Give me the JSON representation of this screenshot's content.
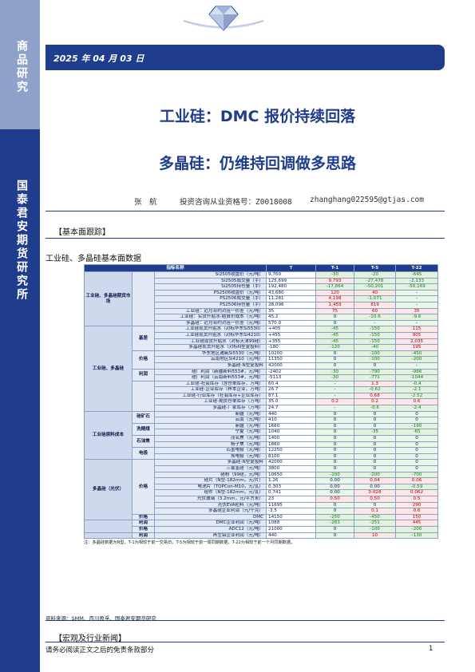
{
  "sidebar": {
    "top_text": "商品研究",
    "bottom_text": "国泰君安期货研究所"
  },
  "header": {
    "date": "2025 年 04 月 03 日"
  },
  "titles": {
    "main": "工业硅：DMC 报价持续回落",
    "sub": "多晶硅：仍维持回调做多思路"
  },
  "author": {
    "name": "张　航",
    "qualification": "投资咨询从业资格号：Z0018008",
    "email": "zhanghang022595@gtjas.com"
  },
  "sections": {
    "basic": "【基本面跟踪】",
    "macro": "【宏观及行业新闻】"
  },
  "table": {
    "caption": "工业硅、多晶硅基本面数据",
    "headers": [
      "指标名称",
      "T",
      "T-1",
      "T-5",
      "T-22"
    ],
    "rows": [
      {
        "grp": "工业硅、多晶硅期货市场",
        "sub": "",
        "name": "Si2505收盘价（元/吨）",
        "t": "9,760",
        "t1": "-30",
        "t5": "-20",
        "t22": "-645"
      },
      {
        "name": "Si2505成交量（手）",
        "t": "125,699",
        "t1": "9,793",
        "t5": "-27,478",
        "t22": "-2,133"
      },
      {
        "name": "Si2505持仓量（手）",
        "t": "192,480",
        "t1": "-17,864",
        "t5": "-50,201",
        "t22": "-50,169"
      },
      {
        "name": "PS2506收盘价（元/吨）",
        "t": "43,680",
        "t1": "120",
        "t5": "40",
        "t22": "-"
      },
      {
        "name": "PS2506成交量（手）",
        "t": "11,281",
        "t1": "4,198",
        "t5": "-1,071",
        "t22": "-"
      },
      {
        "name": "PS2506持仓量（手）",
        "t": "28,096",
        "t1": "1,459",
        "t5": "819",
        "t22": "-"
      },
      {
        "name": "工业硅：近月合约对连一价差（元/吨）",
        "t": "35",
        "t1": "75",
        "t5": "60",
        "t22": "35"
      },
      {
        "name": "工业硅：实货升贴水-结算价成本（元/吨）",
        "t": "45.2",
        "t1": "0",
        "t5": "-10.6",
        "t22": "-9.6"
      },
      {
        "name": "多晶硅：近月合约对连一价差（元/吨）",
        "t": "570.0",
        "t1": "0",
        "t5": "-",
        "t22": "-"
      },
      {
        "grp": "工业硅、多晶硅",
        "sub": "基差",
        "name": "工业硅现货升贴水（对标华东Si5530）",
        "t": "+405",
        "t1": "-45",
        "t5": "-150",
        "t22": "115"
      },
      {
        "name": "工业硅现货升贴水（对标华东Si4210）",
        "t": "+455",
        "t1": "-45",
        "t5": "-150",
        "t22": "905"
      },
      {
        "name": "工业硅现货升贴水（对标天津99硅）",
        "t": "+355",
        "t1": "-45",
        "t5": "-150",
        "t22": "2,035"
      },
      {
        "name": "多晶硅现货升贴水（对标N型复投料）",
        "t": "-180",
        "t1": "-120",
        "t5": "-40",
        "t22": "195"
      },
      {
        "sub": "价格",
        "name": "华东地区通氧Si5530（元/吨）",
        "t": "10200",
        "t1": "0",
        "t5": "-100",
        "t22": "-450"
      },
      {
        "name": "云南地区Si4210（元/吨）",
        "t": "11350",
        "t1": "0",
        "t5": "-100",
        "t22": "-200"
      },
      {
        "name": "多晶硅-N型复投料",
        "t": "42000",
        "t1": "0",
        "t5": "0",
        "t22": "-"
      },
      {
        "sub": "利润",
        "name": "硅厂利润（新疆新料553#，元/吨）",
        "t": "-2402",
        "t1": "-30",
        "t5": "-790",
        "t22": "-966"
      },
      {
        "name": "硅厂利润（云南新料553#，元/吨）",
        "t": "-5113",
        "t1": "-30",
        "t5": "-771",
        "t22": "-1044"
      },
      {
        "name": "工业硅-社会库存（含仓单库存，万吨）",
        "t": "60.4",
        "t1": "-",
        "t5": "1.3",
        "t22": "-0.4"
      },
      {
        "sub": "库存",
        "name": "工业硅-企业库存（样本企业，万吨）",
        "t": "26.7",
        "t1": "-",
        "t5": "-0.62",
        "t22": "-2.1"
      },
      {
        "name": "工业硅-行业库存（社会库存+企业库存）",
        "t": "87.1",
        "t1": "-",
        "t5": "0.68",
        "t22": "-2.52"
      },
      {
        "name": "工业硅-期货仓单库存（万吨）",
        "t": "35.0",
        "t1": "0.2",
        "t5": "0.2",
        "t22": "0.6"
      },
      {
        "name": "多晶硅-厂家库存（万吨）",
        "t": "24.7",
        "t1": "-",
        "t5": "-0.6",
        "t22": "-2.4"
      },
      {
        "grp": "工业硅原料成本",
        "sub": "硅矿石",
        "name": "新疆（元/吨）",
        "t": "440",
        "t1": "0",
        "t5": "0",
        "t22": "0"
      },
      {
        "name": "云南（元/吨）",
        "t": "410",
        "t1": "0",
        "t5": "0",
        "t22": "0"
      },
      {
        "sub": "洗精煤",
        "name": "新疆（元/吨）",
        "t": "1660",
        "t1": "0",
        "t5": "0",
        "t22": "-190"
      },
      {
        "name": "宁夏（元/吨）",
        "t": "1040",
        "t1": "0",
        "t5": "-35",
        "t22": "-65"
      },
      {
        "sub": "石油焦",
        "name": "茂名焦（元/吨）",
        "t": "1400",
        "t1": "0",
        "t5": "0",
        "t22": "0"
      },
      {
        "name": "杨子焦（元/吨）",
        "t": "1860",
        "t1": "0",
        "t5": "0",
        "t22": "0"
      },
      {
        "sub": "电极",
        "name": "石墨电极（元/吨）",
        "t": "12250",
        "t1": "0",
        "t5": "0",
        "t22": "0"
      },
      {
        "name": "炭电极（元/吨）",
        "t": "8100",
        "t1": "0",
        "t5": "0",
        "t22": "0"
      },
      {
        "grp": "多晶硅（光伏）",
        "sub": "价格",
        "name": "多晶硅-N型复投料",
        "t": "42000",
        "t1": "0",
        "t5": "0",
        "t22": "0"
      },
      {
        "name": "三氯氢硅（元/吨）",
        "t": "3800",
        "t1": "0",
        "t5": "0",
        "t22": "0"
      },
      {
        "name": "硅粉（99硅，元/吨）",
        "t": "10650",
        "t1": "-200",
        "t5": "-200",
        "t22": "-700"
      },
      {
        "name": "硅片（N型-182mm，元/片）",
        "t": "1.26",
        "t1": "0.00",
        "t5": "0.04",
        "t22": "0.06"
      },
      {
        "name": "电池片（TOPCon-M10，元/瓦）",
        "t": "0.303",
        "t1": "0.00",
        "t5": "0.00",
        "t22": "-0.59"
      },
      {
        "name": "组件（N型-182mm，元/瓦）",
        "t": "0.741",
        "t1": "0.00",
        "t5": "0.028",
        "t22": "0.062"
      },
      {
        "name": "光伏玻璃（3.2mm，元/平方米）",
        "t": "23",
        "t1": "0.50",
        "t5": "0.50",
        "t22": "0.5"
      },
      {
        "name": "光伏EVA粒料（元/吨）",
        "t": "11695",
        "t1": "0",
        "t5": "0",
        "t22": "290"
      },
      {
        "sub": "利润",
        "name": "多晶硅企业利润（元/千克）",
        "t": "-3.5",
        "t1": "0",
        "t5": "0.1",
        "t22": "0.6"
      },
      {
        "grp": "有机硅",
        "sub": "价格",
        "name": "DMC",
        "t": "14150",
        "t1": "-250",
        "t5": "-450",
        "t22": "150"
      },
      {
        "sub": "利润",
        "name": "DMC企业利润（元/吨）",
        "t": "1088",
        "t1": "-263",
        "t5": "-251",
        "t22": "445"
      },
      {
        "grp": "铝合金",
        "sub": "价格",
        "name": "ADC12（元/吨）",
        "t": "21000",
        "t1": "0",
        "t5": "-100",
        "t22": "-200"
      },
      {
        "sub": "利润",
        "name": "再生铝企业利润（元/吨）",
        "t": "440",
        "t1": "0",
        "t5": "10",
        "t22": "-130"
      }
    ],
    "note": "注：多晶硅数据为N型，T-1为相较于前一交易日，T-5为相较于前一周同期数据，T-22为相较于前一个月同期数据。"
  },
  "source": "资料来源：SMM、百川盈孚、国泰君安期货研究",
  "footer": {
    "disclaimer": "请务必阅读正文之后的免责条款部分",
    "page": "1"
  },
  "colors": {
    "brand": "#1f3d8c",
    "sidebar_light": "#8ea2c9",
    "positive": "#c00000",
    "negative": "#1a7a1a"
  }
}
